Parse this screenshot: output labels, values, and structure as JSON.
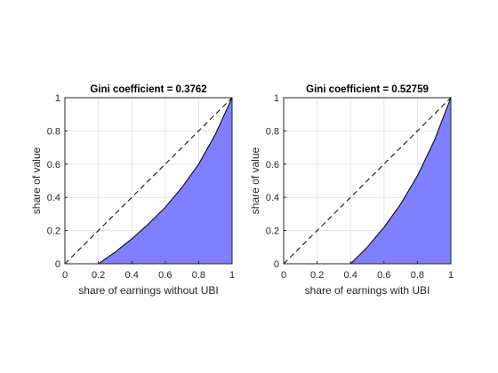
{
  "chart_data": [
    {
      "type": "area",
      "title": "Gini coefficient = 0.3762",
      "xlabel": "share of earnings without UBI",
      "ylabel": "share of value",
      "xlim": [
        0,
        1
      ],
      "ylim": [
        0,
        1
      ],
      "xticks": [
        "0",
        "0.2",
        "0.4",
        "0.6",
        "0.8",
        "1"
      ],
      "yticks": [
        "0",
        "0.2",
        "0.4",
        "0.6",
        "0.8",
        "1"
      ],
      "grid": true,
      "series": [
        {
          "x": [
            0,
            0.2,
            0.3,
            0.4,
            0.5,
            0.6,
            0.7,
            0.8,
            0.9,
            1.0
          ],
          "y": [
            0,
            0,
            0.07,
            0.15,
            0.24,
            0.34,
            0.46,
            0.6,
            0.78,
            1.0
          ],
          "fill": "#7f7fff"
        }
      ],
      "reference_line": {
        "x": [
          0,
          1
        ],
        "y": [
          0,
          1
        ],
        "style": "dashed"
      }
    },
    {
      "type": "area",
      "title": "Gini coefficient = 0.52759",
      "xlabel": "share of earnings with UBI",
      "ylabel": "share of value",
      "xlim": [
        0,
        1
      ],
      "ylim": [
        0,
        1
      ],
      "xticks": [
        "0",
        "0.2",
        "0.4",
        "0.6",
        "0.8",
        "1"
      ],
      "yticks": [
        "0",
        "0.2",
        "0.4",
        "0.6",
        "0.8",
        "1"
      ],
      "grid": true,
      "series": [
        {
          "x": [
            0,
            0.4,
            0.5,
            0.6,
            0.7,
            0.8,
            0.9,
            1.0
          ],
          "y": [
            0,
            0,
            0.1,
            0.22,
            0.36,
            0.53,
            0.74,
            1.0
          ],
          "fill": "#7f7fff"
        }
      ],
      "reference_line": {
        "x": [
          0,
          1
        ],
        "y": [
          0,
          1
        ],
        "style": "dashed"
      }
    }
  ]
}
